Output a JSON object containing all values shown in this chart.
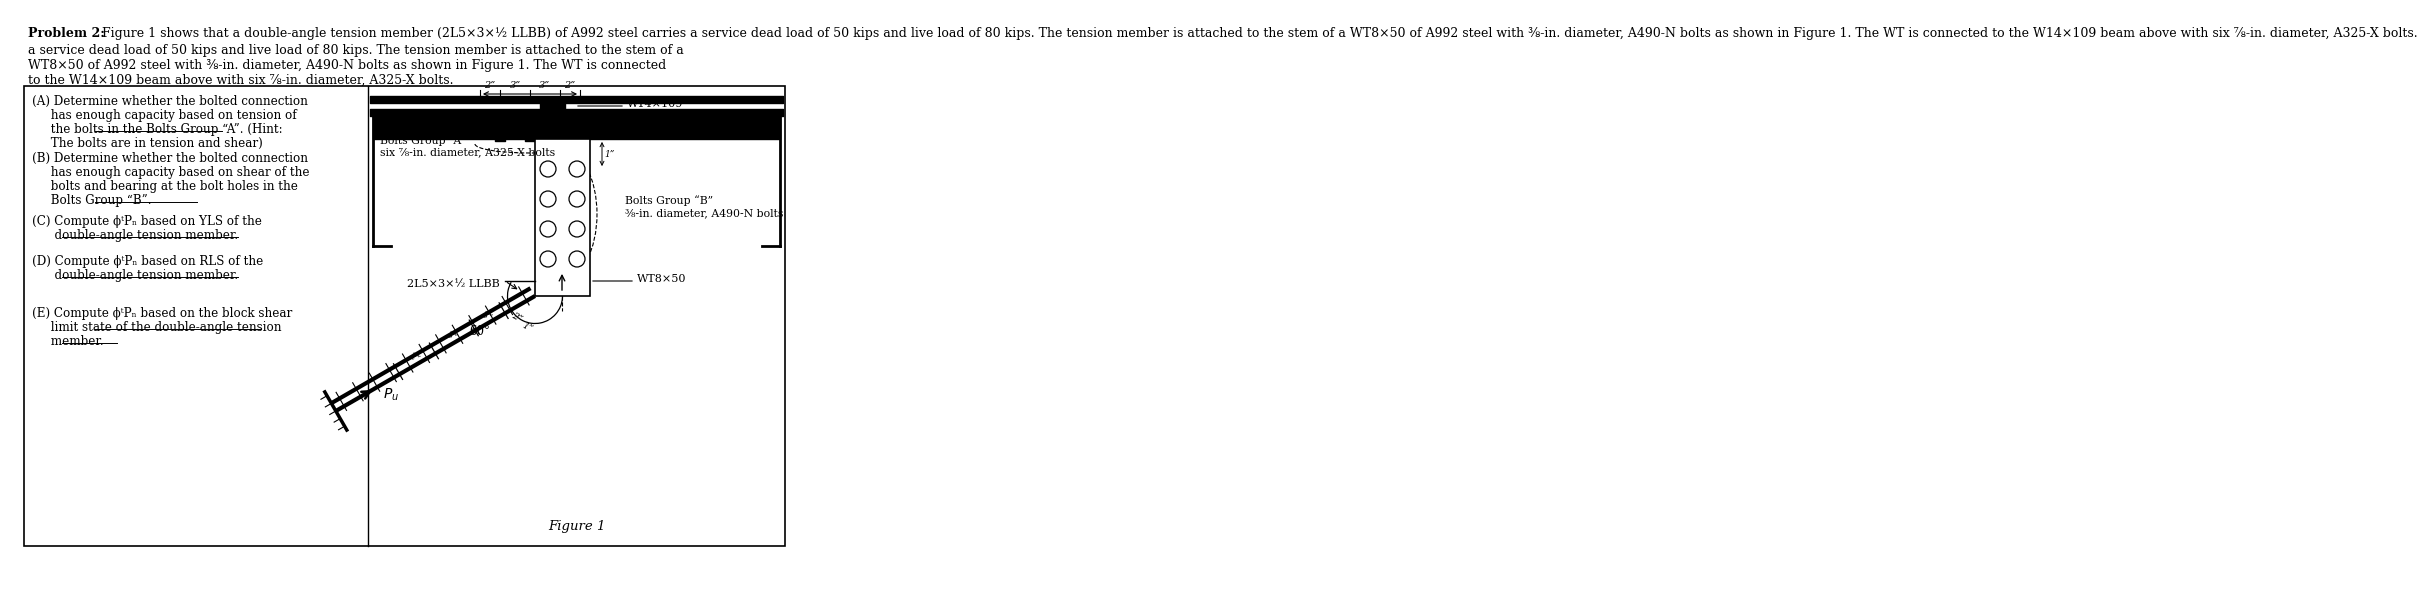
{
  "bg_color": "#ffffff",
  "title_bold": "Problem 2:",
  "title_rest": " Figure 1 shows that a double-angle tension member (2L5×3×½ LLBB) of A992 steel carries a service dead load of 50 kips and live load of 80 kips. The tension member is attached to the stem of a WT8×50 of A992 steel with ⅜-in. diameter, A490-N bolts as shown in Figure 1. The WT is connected to the W14×109 beam above with six ⅞-in. diameter, A325-X bolts.",
  "label_W14": "W14×109",
  "label_WT8": "WT8×50",
  "label_bolts_A_line1": "Bolts Group “A”",
  "label_bolts_A_line2": "six ⅞-in. diameter, A325-X bolts",
  "label_bolts_B_line1": "Bolts Group “B”",
  "label_bolts_B_line2": "⅜-in. diameter, A490-N bolts",
  "label_2L5": "2L5×3×½ LLBB",
  "label_60": "60°",
  "figure_label": "Figure 1",
  "dim_labels": [
    "2”",
    "3”",
    "3”",
    "2”"
  ],
  "left_A_line1": "(A) Determine whether the bolted connection",
  "left_A_line2": "     has enough capacity based on tension of",
  "left_A_line3": "     the bolts in the Bolts Group “A”. (Hint:",
  "left_A_line3u": "Bolts Group “A”",
  "left_A_line4": "     The bolts are in tension and shear)",
  "left_B_line1": "(B) Determine whether the bolted connection",
  "left_B_line2": "     has enough capacity based on shear of the",
  "left_B_line3": "     bolts and bearing at the bolt holes in the",
  "left_B_line4": "     Bolts Group “B”.",
  "left_B_line4u": "Bolts Group “B”",
  "left_C_line1": "(C) Compute ϕᵗPₙ based on YLS of the",
  "left_C_line2": "      double-angle tension member.",
  "left_C_line2u": "double-angle tension member.",
  "left_D_line1": "(D) Compute ϕᵗPₙ based on RLS of the",
  "left_D_line2": "      double-angle tension member.",
  "left_D_line2u": "double-angle tension member.",
  "left_E_line1": "(E) Compute ϕᵗPₙ based on the block shear",
  "left_E_line2": "     limit state of the double-angle tension",
  "left_E_line2u": "double-angle tension",
  "left_E_line3": "     member.",
  "left_E_line3u": "member."
}
